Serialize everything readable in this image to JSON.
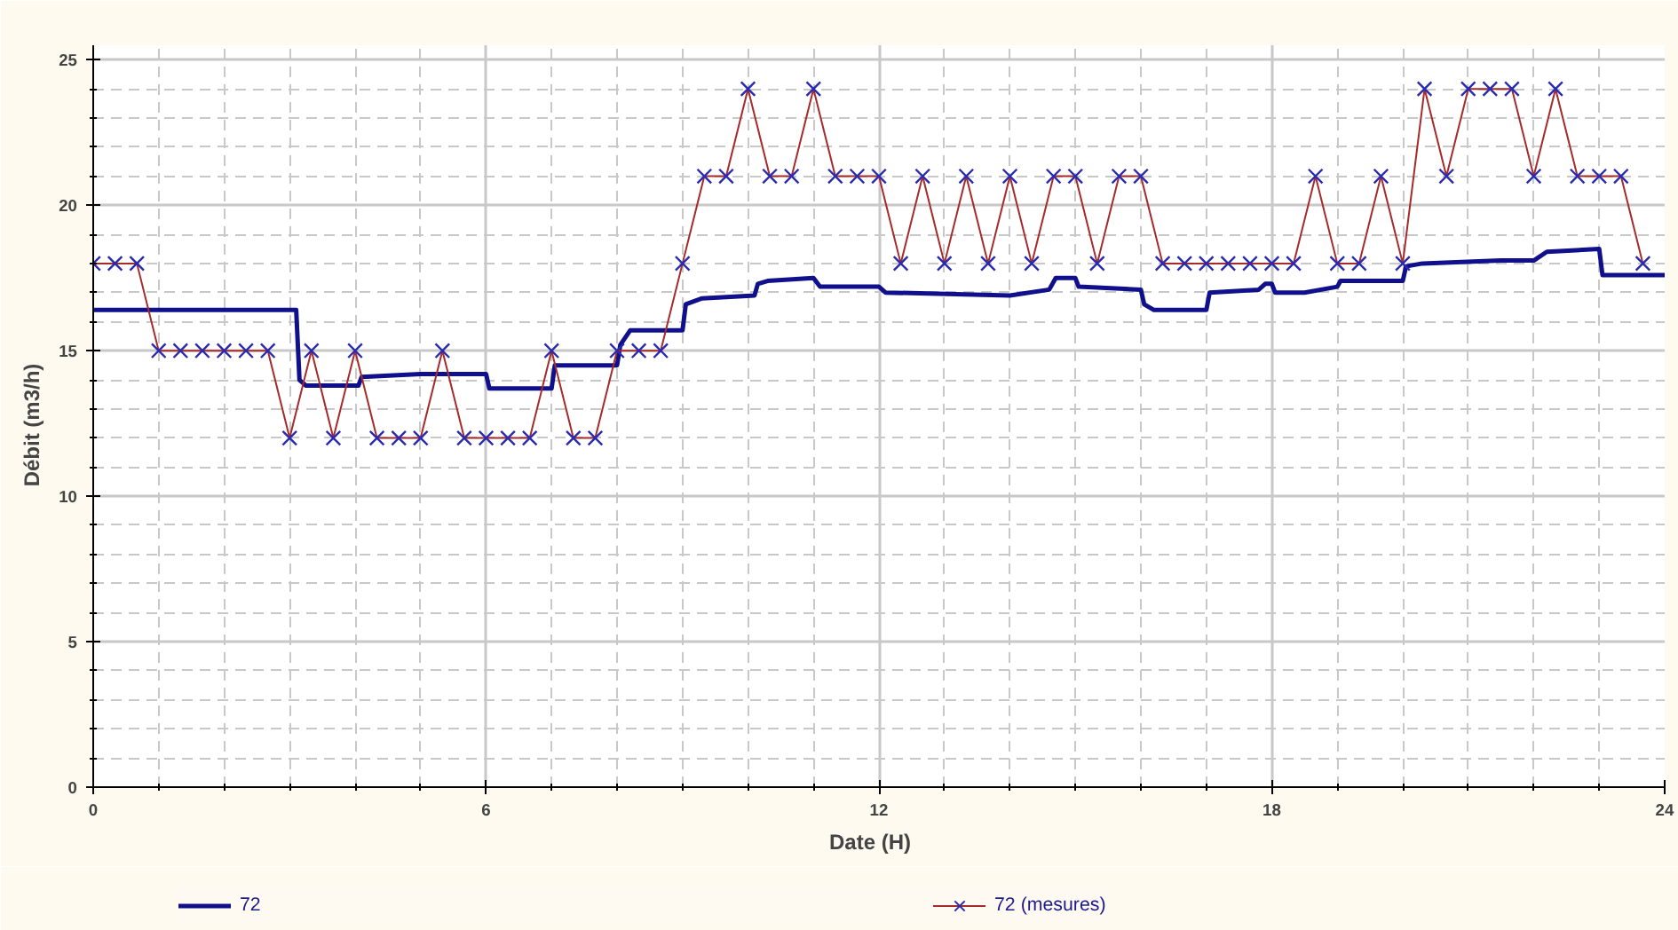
{
  "chart_data": {
    "type": "line",
    "xlabel": "Date    (H)",
    "ylabel": "Débit    (m3/h)",
    "xlim": [
      0,
      24
    ],
    "ylim": [
      0,
      25.5
    ],
    "xticks": [
      0,
      {
        "value": 1,
        "label": null
      },
      {
        "value": 2,
        "label": null
      },
      {
        "value": 3,
        "label": null
      },
      {
        "value": 4,
        "label": null
      },
      {
        "value": 5,
        "label": null
      },
      6,
      {
        "value": 7,
        "label": null
      },
      {
        "value": 8,
        "label": null
      },
      {
        "value": 9,
        "label": null
      },
      {
        "value": 10,
        "label": null
      },
      {
        "value": 11,
        "label": null
      },
      12,
      {
        "value": 13,
        "label": null
      },
      {
        "value": 14,
        "label": null
      },
      {
        "value": 15,
        "label": null
      },
      {
        "value": 16,
        "label": null
      },
      {
        "value": 17,
        "label": null
      },
      18,
      {
        "value": 19,
        "label": null
      },
      {
        "value": 20,
        "label": null
      },
      {
        "value": 21,
        "label": null
      },
      {
        "value": 22,
        "label": null
      },
      {
        "value": 23,
        "label": null
      },
      24
    ],
    "yticks": [
      0,
      {
        "value": 1,
        "label": null
      },
      {
        "value": 2,
        "label": null
      },
      {
        "value": 3,
        "label": null
      },
      {
        "value": 4,
        "label": null
      },
      5,
      {
        "value": 6,
        "label": null
      },
      {
        "value": 7,
        "label": null
      },
      {
        "value": 8,
        "label": null
      },
      {
        "value": 9,
        "label": null
      },
      10,
      {
        "value": 11,
        "label": null
      },
      {
        "value": 12,
        "label": null
      },
      {
        "value": 13,
        "label": null
      },
      {
        "value": 14,
        "label": null
      },
      15,
      {
        "value": 16,
        "label": null
      },
      {
        "value": 17,
        "label": null
      },
      {
        "value": 18,
        "label": null
      },
      {
        "value": 19,
        "label": null
      },
      20,
      {
        "value": 21,
        "label": null
      },
      {
        "value": 22,
        "label": null
      },
      {
        "value": 23,
        "label": null
      },
      {
        "value": 24,
        "label": null
      },
      25
    ],
    "grid": true,
    "legend": "bottom",
    "series": [
      {
        "name": "72",
        "color": "#10108c",
        "marker": "none",
        "x": [
          0,
          3.1,
          3.15,
          3.25,
          4.05,
          4.1,
          5.0,
          6.0,
          6.05,
          7.0,
          7.05,
          8.0,
          8.05,
          8.2,
          9.0,
          9.05,
          9.3,
          10.1,
          10.15,
          10.3,
          11.0,
          11.1,
          12.0,
          12.1,
          14.0,
          14.6,
          14.7,
          15.0,
          15.05,
          16.0,
          16.05,
          16.2,
          17.0,
          17.05,
          17.8,
          17.9,
          18.0,
          18.05,
          18.5,
          19.0,
          19.05,
          20.0,
          20.05,
          20.3,
          21.5,
          22.0,
          22.2,
          23.0,
          23.05,
          24
        ],
        "values": [
          16.4,
          16.4,
          14.0,
          13.8,
          13.8,
          14.1,
          14.2,
          14.2,
          13.7,
          13.7,
          14.5,
          14.5,
          15.2,
          15.7,
          15.7,
          16.6,
          16.8,
          16.9,
          17.3,
          17.4,
          17.5,
          17.2,
          17.2,
          17.0,
          16.9,
          17.1,
          17.5,
          17.5,
          17.2,
          17.1,
          16.6,
          16.4,
          16.4,
          17.0,
          17.1,
          17.3,
          17.3,
          17.0,
          17.0,
          17.2,
          17.4,
          17.4,
          17.9,
          18.0,
          18.1,
          18.1,
          18.4,
          18.5,
          17.6,
          17.6
        ]
      },
      {
        "name": "72 (mesures)",
        "color": "#a52a2a",
        "marker": "cross",
        "x": [
          0,
          0.333,
          0.667,
          1,
          1.333,
          1.667,
          2,
          2.333,
          2.667,
          3,
          3.333,
          3.667,
          4,
          4.333,
          4.667,
          5,
          5.333,
          5.667,
          6,
          6.333,
          6.667,
          7,
          7.333,
          7.667,
          8,
          8.333,
          8.667,
          9,
          9.333,
          9.667,
          10,
          10.333,
          10.667,
          11,
          11.333,
          11.667,
          12,
          12.333,
          12.667,
          13,
          13.333,
          13.667,
          14,
          14.333,
          14.667,
          15,
          15.333,
          15.667,
          16,
          16.333,
          16.667,
          17,
          17.333,
          17.667,
          18,
          18.333,
          18.667,
          19,
          19.333,
          19.667,
          20,
          20.333,
          20.667,
          21,
          21.333,
          21.667,
          22,
          22.333,
          22.667,
          23,
          23.333,
          23.667
        ],
        "values": [
          18,
          18,
          18,
          15,
          15,
          15,
          15,
          15,
          15,
          12,
          15,
          12,
          15,
          12,
          12,
          12,
          15,
          12,
          12,
          12,
          12,
          15,
          12,
          12,
          15,
          15,
          15,
          18,
          21,
          21,
          24,
          21,
          21,
          24,
          21,
          21,
          21,
          18,
          21,
          18,
          21,
          18,
          21,
          18,
          21,
          21,
          18,
          21,
          21,
          18,
          18,
          18,
          18,
          18,
          18,
          18,
          21,
          18,
          18,
          21,
          18,
          24,
          21,
          24,
          24,
          24,
          21,
          24,
          21,
          21,
          21,
          18
        ]
      }
    ]
  }
}
